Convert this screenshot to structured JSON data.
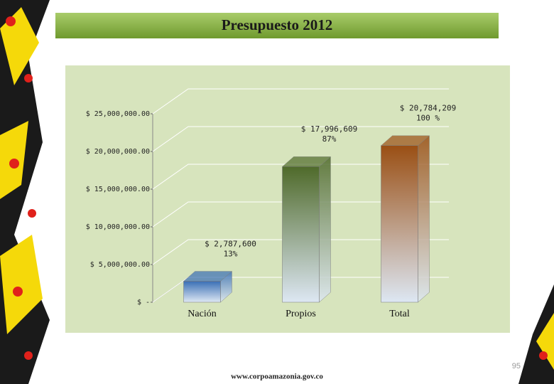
{
  "chart_data": {
    "type": "bar3d",
    "title": "Presupuesto 2012",
    "categories": [
      "Nación",
      "Propios",
      "Total"
    ],
    "values": [
      2787600,
      17996609,
      20784209
    ],
    "value_labels": [
      "$ 2,787,600",
      "$ 17,996,609",
      "$ 20,784,209"
    ],
    "shares": [
      {
        "value": 13,
        "label": "13%"
      },
      {
        "value": 87,
        "label": "87%"
      },
      {
        "value": 100,
        "label": "100 %"
      }
    ],
    "colors": [
      "#3a6fb5",
      "#4f6a2a",
      "#9a4f14"
    ],
    "ylim": [
      0,
      25000000
    ],
    "yticks": [
      {
        "value": 0,
        "label": "$ -"
      },
      {
        "value": 5000000,
        "label": "$ 5,000,000.00"
      },
      {
        "value": 10000000,
        "label": "$ 10,000,000.00"
      },
      {
        "value": 15000000,
        "label": "$ 15,000,000.00"
      },
      {
        "value": 20000000,
        "label": "$ 20,000,000.00"
      },
      {
        "value": 25000000,
        "label": "$ 25,000,000.00"
      }
    ],
    "grid": true
  },
  "footer": {
    "url": "www.corpoamazonia.gov.co",
    "page": 95
  }
}
